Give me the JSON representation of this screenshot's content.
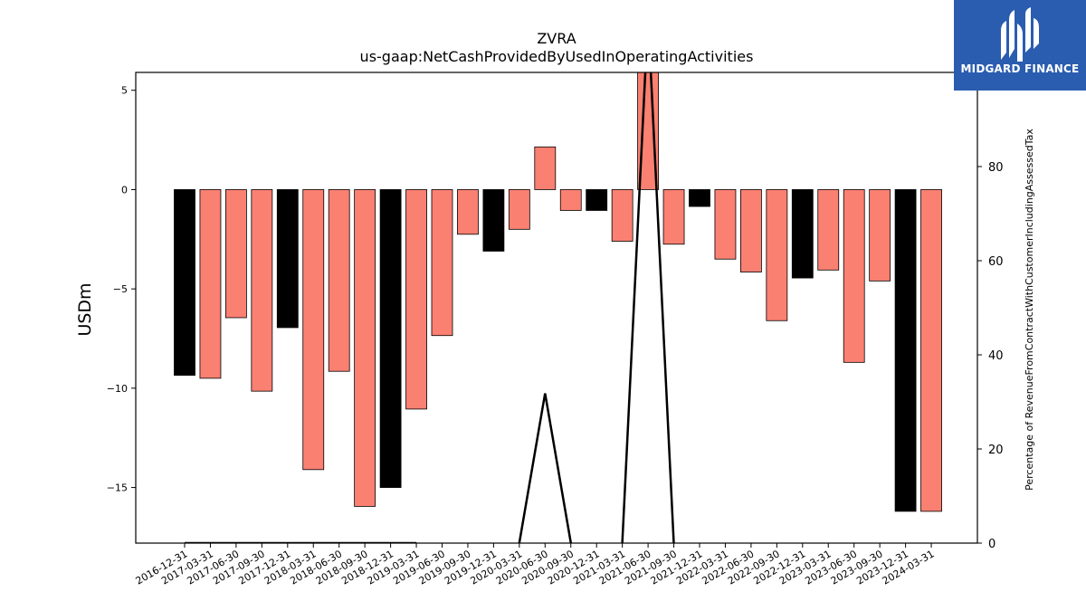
{
  "chart_data": {
    "type": "bar",
    "title": "ZVRA",
    "subtitle": "us-gaap:NetCashProvidedByUsedInOperatingActivities",
    "ylabel": "USDm",
    "y2label": "Percentage of RevenueFromContractWithCustomerIncludingAssessedTax",
    "ylim": [
      -17.8,
      5.9
    ],
    "y2lim": [
      0,
      100
    ],
    "yticks": [
      5,
      0,
      -5,
      -10,
      -15
    ],
    "y2ticks": [
      0,
      20,
      40,
      60,
      80
    ],
    "categories": [
      "2016-12-31",
      "2017-03-31",
      "2017-06-30",
      "2017-09-30",
      "2017-12-31",
      "2018-03-31",
      "2018-06-30",
      "2018-09-30",
      "2018-12-31",
      "2019-03-31",
      "2019-06-30",
      "2019-09-30",
      "2019-12-31",
      "2020-03-31",
      "2020-06-30",
      "2020-09-30",
      "2020-12-31",
      "2021-03-31",
      "2021-06-30",
      "2021-09-30",
      "2021-12-31",
      "2022-03-31",
      "2022-06-30",
      "2022-09-30",
      "2022-12-31",
      "2023-03-31",
      "2023-06-30",
      "2023-09-30",
      "2023-12-31",
      "2024-03-31"
    ],
    "series": [
      {
        "type": "bar",
        "values": [
          -9.35,
          -9.5,
          -6.45,
          -10.15,
          -6.95,
          -14.1,
          -9.15,
          -15.95,
          -15.0,
          -11.05,
          -7.35,
          -2.25,
          -3.1,
          -2.0,
          2.15,
          -1.05,
          -1.05,
          -2.6,
          6.2,
          -2.75,
          -0.85,
          -3.5,
          -4.15,
          -6.6,
          -4.45,
          -4.05,
          -8.7,
          -4.6,
          -16.2,
          -16.2
        ],
        "colors": [
          "#000000",
          "#fa8072",
          "#fa8072",
          "#fa8072",
          "#000000",
          "#fa8072",
          "#fa8072",
          "#fa8072",
          "#000000",
          "#fa8072",
          "#fa8072",
          "#fa8072",
          "#000000",
          "#fa8072",
          "#fa8072",
          "#fa8072",
          "#000000",
          "#fa8072",
          "#fa8072",
          "#fa8072",
          "#000000",
          "#fa8072",
          "#fa8072",
          "#fa8072",
          "#000000",
          "#fa8072",
          "#fa8072",
          "#fa8072",
          "#000000",
          "#fa8072"
        ]
      },
      {
        "type": "line",
        "axis": "right",
        "color": "#000000",
        "values": [
          0,
          0,
          0,
          0,
          0,
          0,
          0,
          0,
          0,
          0,
          null,
          null,
          null,
          0,
          31.8,
          0,
          null,
          0,
          112,
          0,
          null,
          null,
          null,
          null,
          null,
          null,
          null,
          null,
          null,
          null
        ]
      }
    ],
    "grid": false,
    "legend": "none"
  },
  "logo": {
    "text": "MIDGARD FINANCE",
    "color": "#2a5db0",
    "icon": "midgard-logo-icon"
  }
}
